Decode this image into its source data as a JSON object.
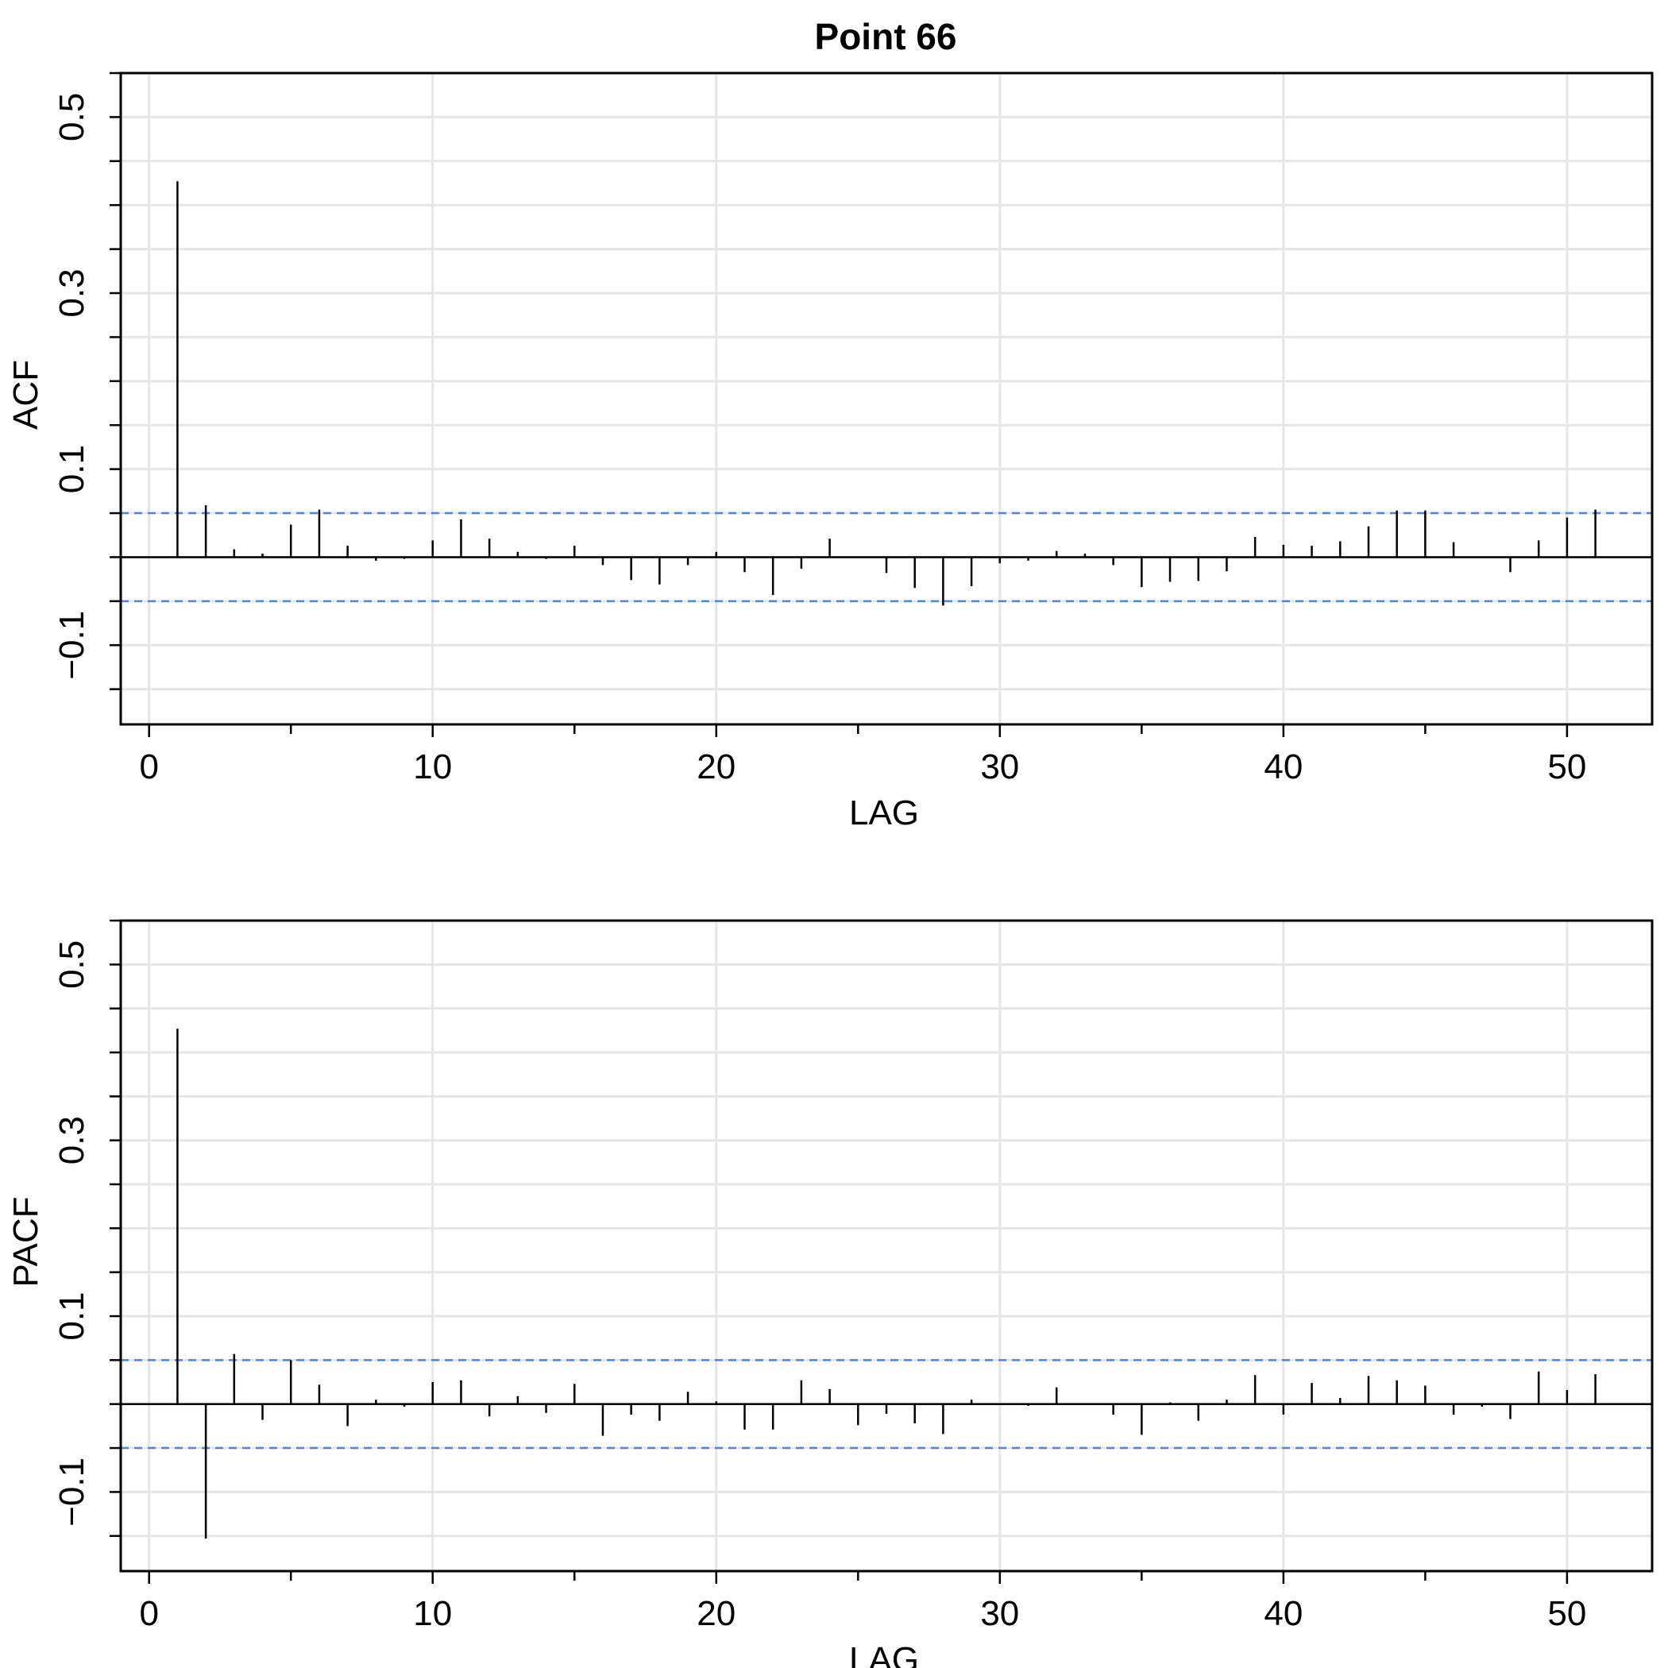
{
  "figure": {
    "title": "Point  66",
    "colors": {
      "grid": "#e6e6e6",
      "bound": "#4f86d8",
      "line": "#000000"
    }
  },
  "chart_data": [
    {
      "type": "bar",
      "ylabel": "ACF",
      "xlabel": "LAG",
      "xlim": [
        -1,
        53
      ],
      "ylim": [
        -0.19,
        0.55
      ],
      "x_ticks": [
        0,
        10,
        20,
        30,
        40,
        50
      ],
      "x_minor_ticks": [
        5,
        15,
        25,
        35,
        45
      ],
      "y_tick_labels": [
        0.5,
        0.3,
        0.1,
        -0.1
      ],
      "y_ticks": [
        -0.15,
        -0.1,
        -0.05,
        0,
        0.05,
        0.1,
        0.15,
        0.2,
        0.25,
        0.3,
        0.35,
        0.4,
        0.45,
        0.5,
        0.55
      ],
      "grid_x": [
        0,
        10,
        20,
        30,
        40,
        50
      ],
      "grid_y": [
        -0.15,
        -0.1,
        -0.05,
        0,
        0.05,
        0.1,
        0.15,
        0.2,
        0.25,
        0.3,
        0.35,
        0.4,
        0.45,
        0.5
      ],
      "confidence_bound": 0.05,
      "lags": [
        1,
        2,
        3,
        4,
        5,
        6,
        7,
        8,
        9,
        10,
        11,
        12,
        13,
        14,
        15,
        16,
        17,
        18,
        19,
        20,
        21,
        22,
        23,
        24,
        25,
        26,
        27,
        28,
        29,
        30,
        31,
        32,
        33,
        34,
        35,
        36,
        37,
        38,
        39,
        40,
        41,
        42,
        43,
        44,
        45,
        46,
        47,
        48,
        49,
        50,
        51
      ],
      "values": [
        0.427,
        0.059,
        0.009,
        0.004,
        0.037,
        0.054,
        0.013,
        -0.004,
        -0.002,
        0.019,
        0.043,
        0.021,
        0.006,
        -0.002,
        0.013,
        -0.009,
        -0.026,
        -0.031,
        -0.009,
        0.006,
        -0.017,
        -0.043,
        -0.013,
        0.021,
        0.0,
        -0.018,
        -0.035,
        -0.055,
        -0.033,
        -0.007,
        -0.004,
        0.007,
        0.004,
        -0.009,
        -0.034,
        -0.028,
        -0.027,
        -0.016,
        0.023,
        0.014,
        0.013,
        0.018,
        0.035,
        0.053,
        0.053,
        0.017,
        -0.001,
        -0.017,
        0.019,
        0.045,
        0.054
      ]
    },
    {
      "type": "bar",
      "ylabel": "PACF",
      "xlabel": "LAG",
      "xlim": [
        -1,
        53
      ],
      "ylim": [
        -0.19,
        0.55
      ],
      "x_ticks": [
        0,
        10,
        20,
        30,
        40,
        50
      ],
      "x_minor_ticks": [
        5,
        15,
        25,
        35,
        45
      ],
      "y_tick_labels": [
        0.5,
        0.3,
        0.1,
        -0.1
      ],
      "y_ticks": [
        -0.15,
        -0.1,
        -0.05,
        0,
        0.05,
        0.1,
        0.15,
        0.2,
        0.25,
        0.3,
        0.35,
        0.4,
        0.45,
        0.5,
        0.55
      ],
      "grid_x": [
        0,
        10,
        20,
        30,
        40,
        50
      ],
      "grid_y": [
        -0.15,
        -0.1,
        -0.05,
        0,
        0.05,
        0.1,
        0.15,
        0.2,
        0.25,
        0.3,
        0.35,
        0.4,
        0.45,
        0.5
      ],
      "confidence_bound": 0.05,
      "lags": [
        1,
        2,
        3,
        4,
        5,
        6,
        7,
        8,
        9,
        10,
        11,
        12,
        13,
        14,
        15,
        16,
        17,
        18,
        19,
        20,
        21,
        22,
        23,
        24,
        25,
        26,
        27,
        28,
        29,
        30,
        31,
        32,
        33,
        34,
        35,
        36,
        37,
        38,
        39,
        40,
        41,
        42,
        43,
        44,
        45,
        46,
        47,
        48,
        49,
        50,
        51
      ],
      "values": [
        0.427,
        -0.153,
        0.057,
        -0.018,
        0.05,
        0.022,
        -0.025,
        0.005,
        -0.003,
        0.025,
        0.027,
        -0.014,
        0.009,
        -0.01,
        0.023,
        -0.036,
        -0.012,
        -0.019,
        0.014,
        0.003,
        -0.029,
        -0.029,
        0.027,
        0.017,
        -0.024,
        -0.011,
        -0.022,
        -0.034,
        0.005,
        0.001,
        -0.002,
        0.019,
        0.0,
        -0.012,
        -0.035,
        0.002,
        -0.019,
        0.005,
        0.033,
        -0.012,
        0.024,
        0.007,
        0.032,
        0.027,
        0.021,
        -0.012,
        -0.003,
        -0.017,
        0.037,
        0.016,
        0.034
      ]
    }
  ]
}
